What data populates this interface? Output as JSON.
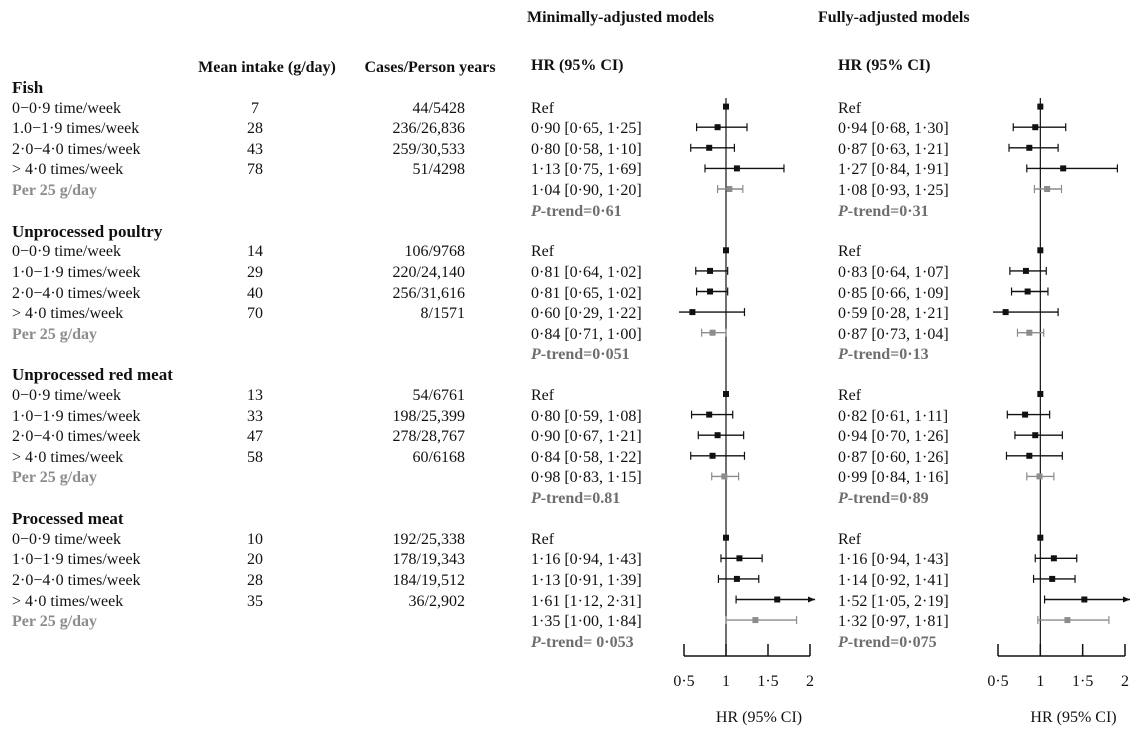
{
  "chart_data": {
    "type": "forest",
    "headers": {
      "mean": "Mean intake (g/day)",
      "cases": "Cases/Person years"
    },
    "colors": {
      "main": "#111111",
      "per_unit": "#8c8c8c"
    },
    "groups": [
      {
        "name": "Fish",
        "rows": [
          {
            "label": "0−0·9 time/week",
            "mean": 7,
            "cases": "44/5428"
          },
          {
            "label": "1.0−1·9 times/week",
            "mean": 28,
            "cases": "236/26,836"
          },
          {
            "label": "2·0−4·0 times/week",
            "mean": 43,
            "cases": "259/30,533"
          },
          {
            "label": "> 4·0 times/week",
            "mean": 78,
            "cases": "51/4298"
          },
          {
            "label": "Per 25 g/day"
          }
        ]
      },
      {
        "name": "Unprocessed poultry",
        "rows": [
          {
            "label": "0−0·9 time/week",
            "mean": 14,
            "cases": "106/9768"
          },
          {
            "label": "1·0−1·9 times/week",
            "mean": 29,
            "cases": "220/24,140"
          },
          {
            "label": "2·0−4·0 times/week",
            "mean": 40,
            "cases": "256/31,616"
          },
          {
            "label": "> 4·0 times/week",
            "mean": 70,
            "cases": "8/1571"
          },
          {
            "label": "Per 25 g/day"
          }
        ]
      },
      {
        "name": "Unprocessed red meat",
        "rows": [
          {
            "label": "0−0·9 time/week",
            "mean": 13,
            "cases": "54/6761"
          },
          {
            "label": "1·0−1·9 times/week",
            "mean": 33,
            "cases": "198/25,399"
          },
          {
            "label": "2·0−4·0 times/week",
            "mean": 47,
            "cases": "278/28,767"
          },
          {
            "label": "> 4·0 times/week",
            "mean": 58,
            "cases": "60/6168"
          },
          {
            "label": "Per 25 g/day"
          }
        ]
      },
      {
        "name": "Processed meat",
        "rows": [
          {
            "label": "0−0·9 time/week",
            "mean": 10,
            "cases": "192/25,338"
          },
          {
            "label": "1·0−1·9 times/week",
            "mean": 20,
            "cases": "178/19,343"
          },
          {
            "label": "2·0−4·0 times/week",
            "mean": 28,
            "cases": "184/19,512"
          },
          {
            "label": "> 4·0 times/week",
            "mean": 35,
            "cases": "36/2,902"
          },
          {
            "label": "Per 25 g/day"
          }
        ]
      }
    ],
    "models": [
      {
        "title": "Minimally-adjusted models",
        "header": "HR (95% CI)",
        "xlabel": "HR (95% CI)",
        "ref_value": 1,
        "xlim": [
          0.5,
          2
        ],
        "xticks": [
          {
            "value": 0.5,
            "label": "0·5"
          },
          1,
          {
            "value": 1.5,
            "label": "1·5"
          },
          2
        ],
        "groups": [
          {
            "ref": "Ref",
            "trend": "P-trend=0·61",
            "rows": [
              {
                "label": "0·90 [0·65, 1·25]",
                "hr": 0.9,
                "ci": [
                  0.65,
                  1.25
                ]
              },
              {
                "label": "0·80 [0·58, 1·10]",
                "hr": 0.8,
                "ci": [
                  0.58,
                  1.1
                ]
              },
              {
                "label": "1·13 [0·75, 1·69]",
                "hr": 1.13,
                "ci": [
                  0.75,
                  1.69
                ]
              },
              {
                "label": "1·04 [0·90, 1·20]",
                "hr": 1.04,
                "ci": [
                  0.9,
                  1.2
                ]
              }
            ]
          },
          {
            "ref": "Ref",
            "trend": "P-trend=0·051",
            "rows": [
              {
                "label": "0·81 [0·64, 1·02]",
                "hr": 0.81,
                "ci": [
                  0.64,
                  1.02
                ]
              },
              {
                "label": "0·81 [0·65, 1·02]",
                "hr": 0.81,
                "ci": [
                  0.65,
                  1.02
                ]
              },
              {
                "label": "0·60 [0·29, 1·22]",
                "hr": 0.6,
                "ci": [
                  0.29,
                  1.22
                ]
              },
              {
                "label": "0·84 [0·71, 1·00]",
                "hr": 0.84,
                "ci": [
                  0.71,
                  1.0
                ]
              }
            ]
          },
          {
            "ref": "Ref",
            "trend": "P-trend=0.81",
            "rows": [
              {
                "label": "0·80 [0·59, 1·08]",
                "hr": 0.8,
                "ci": [
                  0.59,
                  1.08
                ]
              },
              {
                "label": "0·90 [0·67, 1·21]",
                "hr": 0.9,
                "ci": [
                  0.67,
                  1.21
                ]
              },
              {
                "label": "0·84 [0·58, 1·22]",
                "hr": 0.84,
                "ci": [
                  0.58,
                  1.22
                ]
              },
              {
                "label": "0·98 [0·83, 1·15]",
                "hr": 0.98,
                "ci": [
                  0.83,
                  1.15
                ]
              }
            ]
          },
          {
            "ref": "Ref",
            "trend": "P-trend= 0·053",
            "rows": [
              {
                "label": "1·16 [0·94, 1·43]",
                "hr": 1.16,
                "ci": [
                  0.94,
                  1.43
                ]
              },
              {
                "label": "1·13 [0·91, 1·39]",
                "hr": 1.13,
                "ci": [
                  0.91,
                  1.39
                ]
              },
              {
                "label": "1·61 [1·12, 2·31]",
                "hr": 1.61,
                "ci": [
                  1.12,
                  2.31
                ]
              },
              {
                "label": "1·35 [1·00, 1·84]",
                "hr": 1.35,
                "ci": [
                  1.0,
                  1.84
                ]
              }
            ]
          }
        ]
      },
      {
        "title": "Fully-adjusted models",
        "header": "HR (95% CI)",
        "xlabel": "HR (95% CI)",
        "ref_value": 1,
        "xlim": [
          0.5,
          2
        ],
        "xticks": [
          {
            "value": 0.5,
            "label": "0·5"
          },
          1,
          {
            "value": 1.5,
            "label": "1·5"
          },
          2
        ],
        "groups": [
          {
            "ref": "Ref",
            "trend": "P-trend=0·31",
            "rows": [
              {
                "label": "0·94 [0·68, 1·30]",
                "hr": 0.94,
                "ci": [
                  0.68,
                  1.3
                ]
              },
              {
                "label": "0·87 [0·63, 1·21]",
                "hr": 0.87,
                "ci": [
                  0.63,
                  1.21
                ]
              },
              {
                "label": "1·27 [0·84, 1·91]",
                "hr": 1.27,
                "ci": [
                  0.84,
                  1.91
                ]
              },
              {
                "label": "1·08 [0·93, 1·25]",
                "hr": 1.08,
                "ci": [
                  0.93,
                  1.25
                ]
              }
            ]
          },
          {
            "ref": "Ref",
            "trend": "P-trend=0·13",
            "rows": [
              {
                "label": "0·83 [0·64, 1·07]",
                "hr": 0.83,
                "ci": [
                  0.64,
                  1.07
                ]
              },
              {
                "label": "0·85 [0·66, 1·09]",
                "hr": 0.85,
                "ci": [
                  0.66,
                  1.09
                ]
              },
              {
                "label": "0·59 [0·28, 1·21]",
                "hr": 0.59,
                "ci": [
                  0.28,
                  1.21
                ]
              },
              {
                "label": "0·87 [0·73, 1·04]",
                "hr": 0.87,
                "ci": [
                  0.73,
                  1.04
                ]
              }
            ]
          },
          {
            "ref": "Ref",
            "trend": "P-trend=0·89",
            "rows": [
              {
                "label": "0·82 [0·61, 1·11]",
                "hr": 0.82,
                "ci": [
                  0.61,
                  1.11
                ]
              },
              {
                "label": "0·94 [0·70, 1·26]",
                "hr": 0.94,
                "ci": [
                  0.7,
                  1.26
                ]
              },
              {
                "label": "0·87 [0·60, 1·26]",
                "hr": 0.87,
                "ci": [
                  0.6,
                  1.26
                ]
              },
              {
                "label": "0·99 [0·84, 1·16]",
                "hr": 0.99,
                "ci": [
                  0.84,
                  1.16
                ]
              }
            ]
          },
          {
            "ref": "Ref",
            "trend": "P-trend=0·075",
            "rows": [
              {
                "label": "1·16 [0·94, 1·43]",
                "hr": 1.16,
                "ci": [
                  0.94,
                  1.43
                ]
              },
              {
                "label": "1·14 [0·92, 1·41]",
                "hr": 1.14,
                "ci": [
                  0.92,
                  1.41
                ]
              },
              {
                "label": "1·52 [1·05, 2·19]",
                "hr": 1.52,
                "ci": [
                  1.05,
                  2.19
                ]
              },
              {
                "label": "1·32 [0·97, 1·81]",
                "hr": 1.32,
                "ci": [
                  0.97,
                  1.81
                ]
              }
            ]
          }
        ]
      }
    ]
  }
}
